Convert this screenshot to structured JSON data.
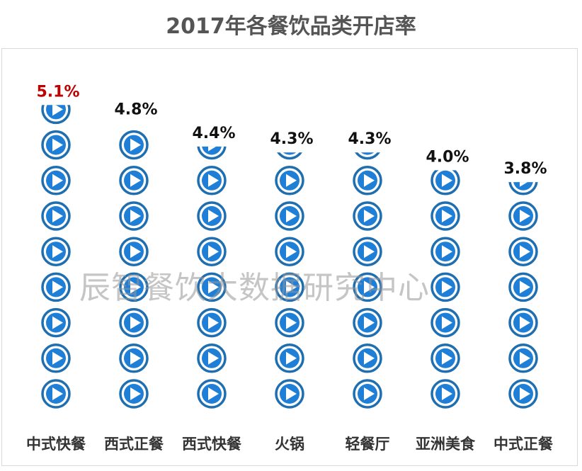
{
  "title": "2017年各餐饮品类开店率",
  "watermark": "辰智餐饮大数据研究中心",
  "colors": {
    "icon_ring": "#1f6fb0",
    "icon_fill": "#1f7fd6",
    "highlight_label": "#c00000",
    "label": "#111111",
    "category_label": "#333333"
  },
  "chart_data": {
    "type": "pictograph",
    "icon": "play-icon",
    "categories": [
      "中式快餐",
      "西式正餐",
      "西式快餐",
      "火锅",
      "轻餐厅",
      "亚洲美食",
      "中式正餐"
    ],
    "values": [
      5.1,
      4.8,
      4.4,
      4.3,
      4.3,
      4.0,
      3.8
    ],
    "data_labels": [
      "5.1%",
      "4.8%",
      "4.4%",
      "4.3%",
      "4.3%",
      "4.0%",
      "3.8%"
    ],
    "highlight_index": 0,
    "title": "2017年各餐饮品类开店率"
  }
}
